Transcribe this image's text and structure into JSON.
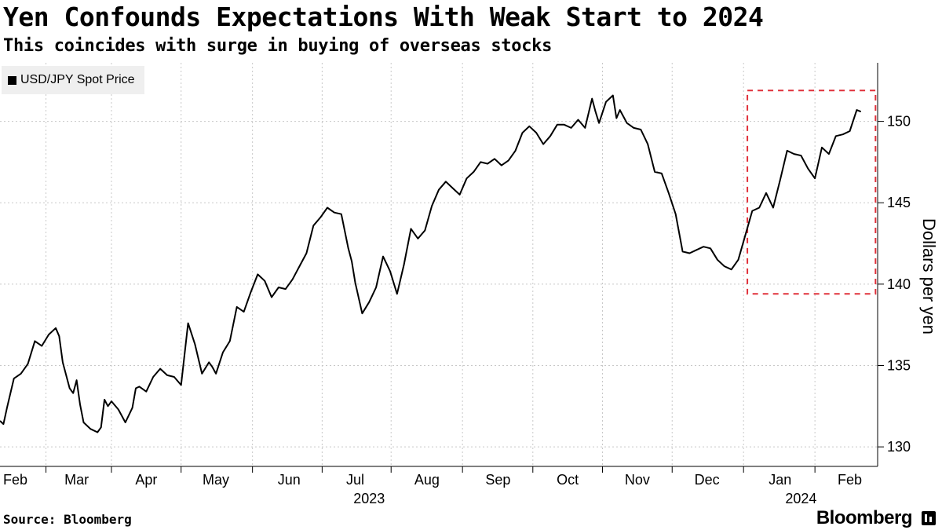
{
  "title": "Yen Confounds Expectations With Weak Start to 2024",
  "subtitle": "This coincides with surge in buying of overseas stocks",
  "legend": "USD/JPY Spot Price",
  "source": "Source: Bloomberg",
  "brand": "Bloomberg",
  "colors": {
    "line": "#000000",
    "grid": "#c8c8c8",
    "highlight": "#e0303a",
    "legend_bg": "#efefef"
  },
  "chart_data": {
    "type": "line",
    "title": "Yen Confounds Expectations With Weak Start to 2024",
    "subtitle": "This coincides with surge in buying of overseas stocks",
    "ylabel": "Dollars per yen",
    "xlabel": "",
    "ylim": [
      128.8,
      153.6
    ],
    "yticks": [
      130,
      135,
      140,
      145,
      150
    ],
    "xlim": [
      0,
      12.6
    ],
    "xticks": [
      {
        "label": "Feb",
        "pos": 0.22
      },
      {
        "label": "Mar",
        "pos": 1.1
      },
      {
        "label": "Apr",
        "pos": 2.1
      },
      {
        "label": "May",
        "pos": 3.1
      },
      {
        "label": "Jun",
        "pos": 4.15
      },
      {
        "label": "Jul",
        "pos": 5.1
      },
      {
        "label": "Aug",
        "pos": 6.13
      },
      {
        "label": "Sep",
        "pos": 7.15
      },
      {
        "label": "Oct",
        "pos": 8.15
      },
      {
        "label": "Nov",
        "pos": 9.15
      },
      {
        "label": "Dec",
        "pos": 10.15
      },
      {
        "label": "Jan",
        "pos": 11.2
      },
      {
        "label": "Feb",
        "pos": 12.2
      }
    ],
    "year_labels": [
      {
        "label": "2023",
        "pos": 5.3
      },
      {
        "label": "2024",
        "pos": 11.5
      }
    ],
    "highlight_box": {
      "x0": 10.73,
      "x1": 12.57,
      "y0": 139.4,
      "y1": 151.9
    },
    "series": [
      {
        "name": "USD/JPY Spot Price",
        "x": [
          0,
          0.05,
          0.1,
          0.2,
          0.3,
          0.4,
          0.5,
          0.6,
          0.7,
          0.8,
          0.85,
          0.9,
          1.0,
          1.05,
          1.1,
          1.15,
          1.2,
          1.3,
          1.4,
          1.45,
          1.5,
          1.55,
          1.6,
          1.7,
          1.8,
          1.9,
          1.95,
          2.0,
          2.1,
          2.2,
          2.3,
          2.4,
          2.5,
          2.6,
          2.7,
          2.8,
          2.9,
          3.0,
          3.05,
          3.1,
          3.2,
          3.3,
          3.4,
          3.5,
          3.6,
          3.7,
          3.8,
          3.9,
          4.0,
          4.1,
          4.2,
          4.3,
          4.4,
          4.5,
          4.6,
          4.7,
          4.8,
          4.9,
          5.0,
          5.05,
          5.1,
          5.2,
          5.3,
          5.4,
          5.5,
          5.6,
          5.7,
          5.8,
          5.9,
          6.0,
          6.1,
          6.2,
          6.3,
          6.4,
          6.5,
          6.6,
          6.7,
          6.8,
          6.9,
          7.0,
          7.1,
          7.2,
          7.3,
          7.4,
          7.5,
          7.6,
          7.7,
          7.8,
          7.9,
          8.0,
          8.1,
          8.2,
          8.3,
          8.4,
          8.5,
          8.55,
          8.6,
          8.7,
          8.8,
          8.85,
          8.9,
          9.0,
          9.1,
          9.2,
          9.3,
          9.4,
          9.5,
          9.6,
          9.7,
          9.8,
          9.9,
          10.0,
          10.1,
          10.2,
          10.3,
          10.4,
          10.5,
          10.6,
          10.7,
          10.8,
          10.9,
          11.0,
          11.1,
          11.2,
          11.3,
          11.4,
          11.5,
          11.6,
          11.7,
          11.8,
          11.9,
          12.0,
          12.1,
          12.2,
          12.3,
          12.36
        ],
        "y": [
          131.6,
          131.4,
          132.4,
          134.2,
          134.5,
          135.1,
          136.5,
          136.2,
          136.9,
          137.3,
          136.8,
          135.2,
          133.6,
          133.3,
          134.1,
          132.6,
          131.5,
          131.1,
          130.9,
          131.2,
          132.9,
          132.5,
          132.8,
          132.3,
          131.5,
          132.4,
          133.6,
          133.7,
          133.4,
          134.3,
          134.8,
          134.4,
          134.3,
          133.8,
          137.6,
          136.3,
          134.5,
          135.2,
          134.9,
          134.5,
          135.8,
          136.5,
          138.6,
          138.3,
          139.5,
          140.6,
          140.2,
          139.2,
          139.8,
          139.7,
          140.3,
          141.1,
          141.9,
          143.6,
          144.1,
          144.7,
          144.4,
          144.3,
          142.2,
          141.4,
          140.1,
          138.2,
          138.9,
          139.8,
          141.7,
          140.8,
          139.4,
          141.2,
          143.4,
          142.8,
          143.3,
          144.8,
          145.8,
          146.3,
          145.9,
          145.5,
          146.5,
          146.9,
          147.5,
          147.4,
          147.7,
          147.3,
          147.6,
          148.2,
          149.3,
          149.7,
          149.3,
          148.6,
          149.1,
          149.8,
          149.8,
          149.6,
          150.1,
          149.6,
          151.4,
          150.6,
          149.9,
          151.2,
          151.6,
          150.2,
          150.7,
          149.9,
          149.6,
          149.5,
          148.6,
          146.9,
          146.8,
          145.6,
          144.3,
          142.0,
          141.9,
          142.1,
          142.3,
          142.2,
          141.5,
          141.1,
          140.9,
          141.5,
          143.0,
          144.5,
          144.7,
          145.6,
          144.7,
          146.4,
          148.2,
          148.0,
          147.9,
          147.1,
          146.5,
          148.4,
          148.0,
          149.1,
          149.2,
          149.4,
          150.7,
          150.6
        ]
      }
    ]
  }
}
